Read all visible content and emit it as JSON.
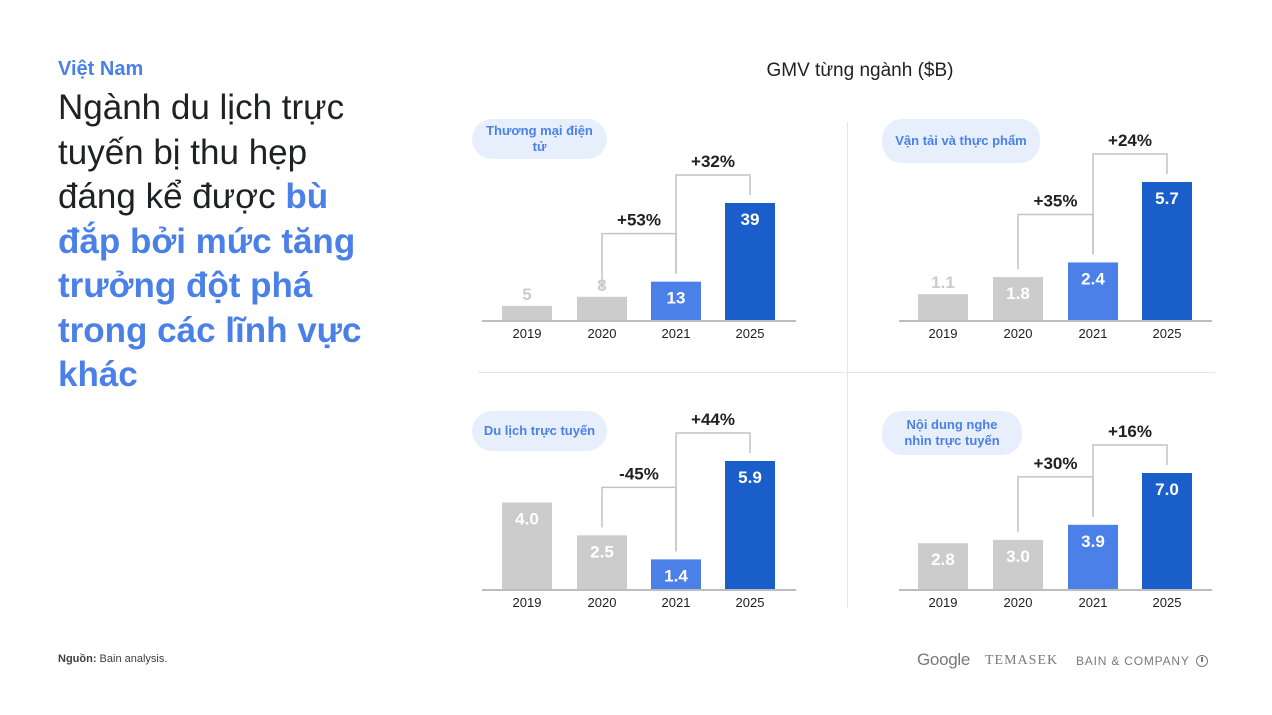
{
  "page": {
    "country": "Việt Nam",
    "headline_plain": "Ngành du lịch trực tuyến bị thu hẹp đáng kể được ",
    "headline_highlight": "bù đắp bởi mức tăng trưởng đột phá trong các lĩnh vực khác",
    "charts_title": "GMV từng ngành ($B)",
    "source_label": "Nguồn:",
    "source_text": "Bain analysis.",
    "logos": {
      "google": "Google",
      "temasek": "TEMASEK",
      "bain": "BAIN & COMPANY"
    }
  },
  "chart_data": [
    {
      "type": "bar",
      "title": "Thương mại điện tử",
      "categories": [
        "2019",
        "2020",
        "2021",
        "2025"
      ],
      "values": [
        5,
        8,
        13,
        39
      ],
      "value_labels": [
        "5",
        "8",
        "13",
        "39"
      ],
      "growth": [
        {
          "from": "2020",
          "to": "2021",
          "label": "+53%"
        },
        {
          "from": "2021",
          "to": "2025",
          "label": "+32%"
        }
      ],
      "colors": [
        "#cccccc",
        "#cccccc",
        "#4a80e8",
        "#1a5fc9"
      ]
    },
    {
      "type": "bar",
      "title": "Vận tải và thực phẩm",
      "categories": [
        "2019",
        "2020",
        "2021",
        "2025"
      ],
      "values": [
        1.1,
        1.8,
        2.4,
        5.7
      ],
      "value_labels": [
        "1.1",
        "1.8",
        "2.4",
        "5.7"
      ],
      "growth": [
        {
          "from": "2020",
          "to": "2021",
          "label": "+35%"
        },
        {
          "from": "2021",
          "to": "2025",
          "label": "+24%"
        }
      ],
      "colors": [
        "#cccccc",
        "#cccccc",
        "#4a80e8",
        "#1a5fc9"
      ]
    },
    {
      "type": "bar",
      "title": "Du lịch trực tuyến",
      "categories": [
        "2019",
        "2020",
        "2021",
        "2025"
      ],
      "values": [
        4.0,
        2.5,
        1.4,
        5.9
      ],
      "value_labels": [
        "4.0",
        "2.5",
        "1.4",
        "5.9"
      ],
      "growth": [
        {
          "from": "2020",
          "to": "2021",
          "label": "-45%"
        },
        {
          "from": "2021",
          "to": "2025",
          "label": "+44%"
        }
      ],
      "colors": [
        "#cccccc",
        "#cccccc",
        "#4a80e8",
        "#1a5fc9"
      ]
    },
    {
      "type": "bar",
      "title": "Nội dung nghe nhìn trực tuyến",
      "categories": [
        "2019",
        "2020",
        "2021",
        "2025"
      ],
      "values": [
        2.8,
        3.0,
        3.9,
        7.0
      ],
      "value_labels": [
        "2.8",
        "3.0",
        "3.9",
        "7.0"
      ],
      "growth": [
        {
          "from": "2020",
          "to": "2021",
          "label": "+30%"
        },
        {
          "from": "2021",
          "to": "2025",
          "label": "+16%"
        }
      ],
      "colors": [
        "#cccccc",
        "#cccccc",
        "#4a80e8",
        "#1a5fc9"
      ]
    }
  ]
}
